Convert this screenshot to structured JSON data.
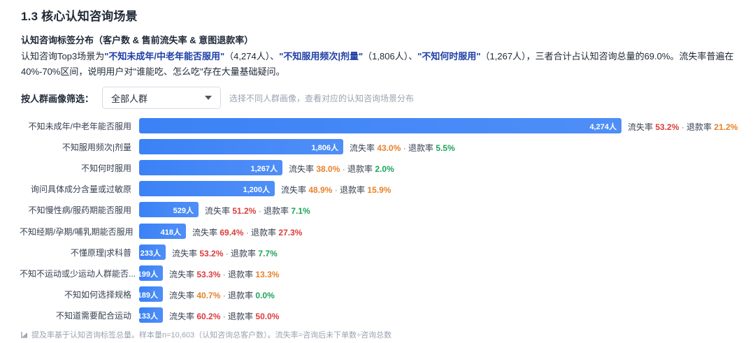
{
  "section_title": "1.3 核心认知咨询场景",
  "subtitle": "认知咨询标签分布（客户数 & 售前流失率 & 意图退款率）",
  "summary": {
    "p1": "认知咨询Top3场景为",
    "h1": "\"不知未成年/中老年能否服用\"",
    "p2": "（4,274人）、",
    "h2": "\"不知服用频次|剂量\"",
    "p3": "（1,806人）、",
    "h3": "\"不知何时服用\"",
    "p4": "（1,267人），三者合计占认知咨询总量的69.0%。流失率普遍在40%-70%区间，说明用户对\"谁能吃、怎么吃\"存在大量基础疑问。"
  },
  "filter": {
    "label": "按人群画像筛选：",
    "selected": "全部人群",
    "hint": "选择不同人群画像，查看对应的认知咨询场景分布"
  },
  "metric_labels": {
    "loss": "流失率",
    "refund": "退款率",
    "dot": " · "
  },
  "chart_data": {
    "type": "bar",
    "orientation": "horizontal",
    "categories": [
      "不知未成年/中老年能否服用",
      "不知服用频次|剂量",
      "不知何时服用",
      "询问具体成分含量或过敏原",
      "不知慢性病/服药期能否服用",
      "不知经期/孕期/哺乳期能否服用",
      "不懂原理|求科普",
      "不知不运动或少运动人群能否...",
      "不知如何选择规格",
      "不知道需要配合运动"
    ],
    "values": [
      4274,
      1806,
      1267,
      1200,
      529,
      418,
      233,
      199,
      189,
      133
    ],
    "value_labels": [
      "4,274人",
      "1,806人",
      "1,267人",
      "1,200人",
      "529人",
      "418人",
      "233人",
      "199人",
      "189人",
      "133人"
    ],
    "loss_rate": [
      "53.2%",
      "43.0%",
      "38.0%",
      "48.9%",
      "51.2%",
      "69.4%",
      "53.2%",
      "53.3%",
      "40.7%",
      "60.2%"
    ],
    "loss_level": [
      "red",
      "orange",
      "orange",
      "orange",
      "red",
      "red",
      "red",
      "red",
      "orange",
      "red"
    ],
    "refund_rate": [
      "21.2%",
      "5.5%",
      "2.0%",
      "15.9%",
      "7.1%",
      "27.3%",
      "7.7%",
      "13.3%",
      "0.0%",
      "50.0%"
    ],
    "refund_level": [
      "orange",
      "green",
      "green",
      "orange",
      "green",
      "red",
      "green",
      "orange",
      "green",
      "red"
    ],
    "colors": {
      "bar": "#3b82f6",
      "red": "#dc3c3c",
      "orange": "#e8822a",
      "green": "#1ea35a"
    }
  },
  "footnote": "提及率基于认知咨询标签总量。样本量n=10,603（认知咨询总客户数）。流失率=咨询后未下单数÷咨询总数"
}
